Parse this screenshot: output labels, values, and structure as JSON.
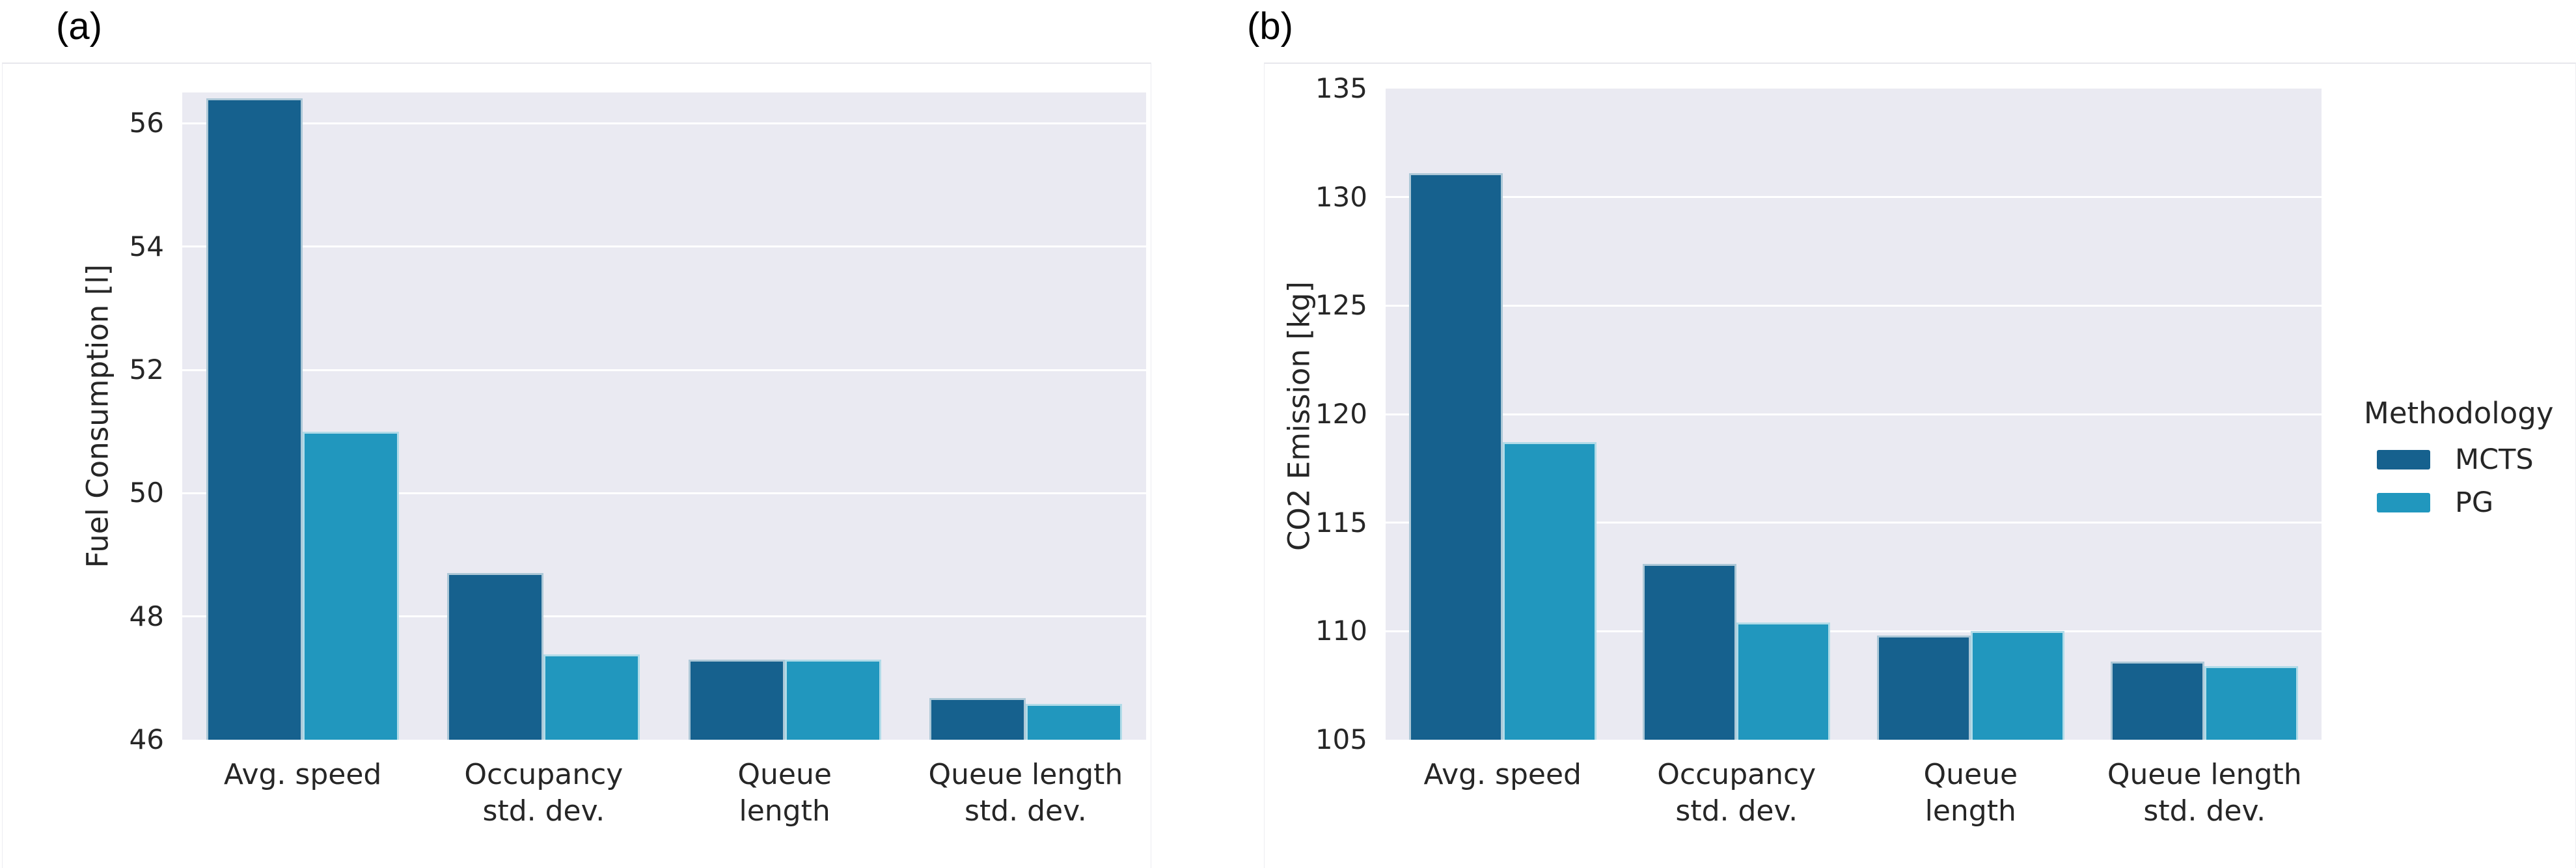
{
  "panel_labels": {
    "a": "(a)",
    "b": "(b)"
  },
  "colors": {
    "mcts": "#16618E",
    "pg": "#2197BE",
    "panel_bg": "#EAEAF2",
    "grid": "#FFFFFF",
    "text": "#262626"
  },
  "legend": {
    "title": "Methodology",
    "items": [
      {
        "label": "MCTS",
        "color_key": "mcts"
      },
      {
        "label": "PG",
        "color_key": "pg"
      }
    ]
  },
  "chart_data": [
    {
      "id": "fuel",
      "type": "bar",
      "panel_label": "(a)",
      "ylabel": "Fuel Consumption [l]",
      "categories": [
        [
          "Avg. speed"
        ],
        [
          "Occupancy",
          "std. dev."
        ],
        [
          "Queue",
          "length"
        ],
        [
          "Queue length",
          "std. dev."
        ]
      ],
      "series": [
        {
          "name": "MCTS",
          "color_key": "mcts",
          "values": [
            56.4,
            48.7,
            47.3,
            46.68
          ]
        },
        {
          "name": "PG",
          "color_key": "pg",
          "values": [
            51.0,
            47.38,
            47.3,
            46.58
          ]
        }
      ],
      "ylim": [
        46,
        56.5
      ],
      "yticks": [
        46,
        48,
        50,
        52,
        54,
        56
      ],
      "grid": true,
      "legend_position": "none"
    },
    {
      "id": "co2",
      "type": "bar",
      "panel_label": "(b)",
      "ylabel": "CO2 Emission [kg]",
      "categories": [
        [
          "Avg. speed"
        ],
        [
          "Occupancy",
          "std. dev."
        ],
        [
          "Queue",
          "length"
        ],
        [
          "Queue length",
          "std. dev."
        ]
      ],
      "series": [
        {
          "name": "MCTS",
          "color_key": "mcts",
          "values": [
            131.1,
            113.1,
            109.8,
            108.6
          ]
        },
        {
          "name": "PG",
          "color_key": "pg",
          "values": [
            118.7,
            110.4,
            110.0,
            108.4
          ]
        }
      ],
      "ylim": [
        105,
        135
      ],
      "yticks": [
        105,
        110,
        115,
        120,
        125,
        130,
        135
      ],
      "grid": true,
      "legend_position": "center right"
    }
  ]
}
